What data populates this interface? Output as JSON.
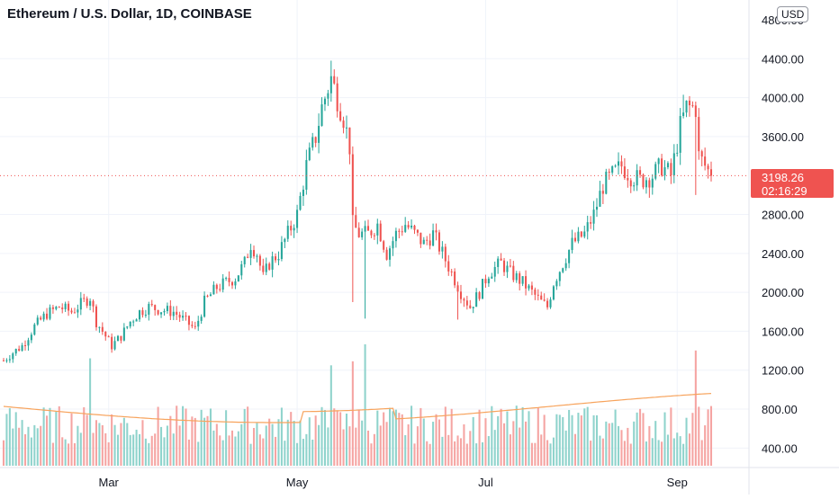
{
  "header": {
    "title": "Ethereum / U.S. Dollar, 1D, COINBASE",
    "currency_button": "USD"
  },
  "price_tag": {
    "value": "3198.26",
    "countdown": "02:16:29"
  },
  "colors": {
    "up": "#26a69a",
    "down": "#ef5350",
    "volume_up": "#8fd3cc",
    "volume_down": "#f5a4a2",
    "volume_ma": "#f7a35c",
    "grid": "#f0f3fa",
    "price_line": "#ef5350"
  },
  "chart_data": {
    "type": "candlestick",
    "y_axis": {
      "ticks": [
        "400.00",
        "800.00",
        "1200.00",
        "1600.00",
        "2000.00",
        "2400.00",
        "2800.00",
        "3600.00",
        "4000.00",
        "4400.00"
      ],
      "top_tick_partial": "4800.00",
      "range": [
        200,
        4800
      ]
    },
    "x_axis": {
      "ticks": [
        "Mar",
        "May",
        "Jul",
        "Sep"
      ]
    },
    "last_price": 3198.26,
    "series": [
      {
        "kind": "price_path",
        "points": [
          [
            "2021-01-26",
            1300
          ],
          [
            "2021-01-29",
            1380
          ],
          [
            "2021-02-01",
            1450
          ],
          [
            "2021-02-05",
            1650
          ],
          [
            "2021-02-09",
            1780
          ],
          [
            "2021-02-13",
            1850
          ],
          [
            "2021-02-17",
            1800
          ],
          [
            "2021-02-20",
            1880
          ],
          [
            "2021-02-23",
            1950
          ],
          [
            "2021-02-25",
            1700
          ],
          [
            "2021-02-28",
            1550
          ],
          [
            "2021-03-02",
            1450
          ],
          [
            "2021-03-05",
            1550
          ],
          [
            "2021-03-08",
            1700
          ],
          [
            "2021-03-11",
            1800
          ],
          [
            "2021-03-14",
            1850
          ],
          [
            "2021-03-18",
            1820
          ],
          [
            "2021-03-22",
            1800
          ],
          [
            "2021-03-26",
            1700
          ],
          [
            "2021-03-29",
            1620
          ],
          [
            "2021-04-01",
            1900
          ],
          [
            "2021-04-05",
            2050
          ],
          [
            "2021-04-08",
            2100
          ],
          [
            "2021-04-11",
            2150
          ],
          [
            "2021-04-14",
            2300
          ],
          [
            "2021-04-16",
            2500
          ],
          [
            "2021-04-18",
            2400
          ],
          [
            "2021-04-20",
            2150
          ],
          [
            "2021-04-22",
            2300
          ],
          [
            "2021-04-25",
            2400
          ],
          [
            "2021-04-28",
            2600
          ],
          [
            "2021-05-01",
            2800
          ],
          [
            "2021-05-04",
            3300
          ],
          [
            "2021-05-07",
            3600
          ],
          [
            "2021-05-09",
            3900
          ],
          [
            "2021-05-12",
            4200
          ],
          [
            "2021-05-14",
            4000
          ],
          [
            "2021-05-16",
            3800
          ],
          [
            "2021-05-18",
            3500
          ],
          [
            "2021-05-19",
            2700
          ],
          [
            "2021-05-21",
            2600
          ],
          [
            "2021-05-24",
            2600
          ],
          [
            "2021-05-27",
            2700
          ],
          [
            "2021-05-30",
            2400
          ],
          [
            "2021-06-02",
            2600
          ],
          [
            "2021-06-05",
            2700
          ],
          [
            "2021-06-08",
            2600
          ],
          [
            "2021-06-11",
            2500
          ],
          [
            "2021-06-14",
            2600
          ],
          [
            "2021-06-17",
            2400
          ],
          [
            "2021-06-20",
            2200
          ],
          [
            "2021-06-23",
            2000
          ],
          [
            "2021-06-26",
            1850
          ],
          [
            "2021-06-29",
            2000
          ],
          [
            "2021-07-02",
            2200
          ],
          [
            "2021-07-06",
            2300
          ],
          [
            "2021-07-09",
            2200
          ],
          [
            "2021-07-13",
            2100
          ],
          [
            "2021-07-16",
            2000
          ],
          [
            "2021-07-19",
            1900
          ],
          [
            "2021-07-21",
            1850
          ],
          [
            "2021-07-23",
            2100
          ],
          [
            "2021-07-26",
            2300
          ],
          [
            "2021-07-29",
            2500
          ],
          [
            "2021-08-02",
            2600
          ],
          [
            "2021-08-05",
            2800
          ],
          [
            "2021-08-08",
            3100
          ],
          [
            "2021-08-11",
            3200
          ],
          [
            "2021-08-14",
            3300
          ],
          [
            "2021-08-17",
            3200
          ],
          [
            "2021-08-20",
            3150
          ],
          [
            "2021-08-24",
            3200
          ],
          [
            "2021-08-27",
            3300
          ],
          [
            "2021-08-30",
            3200
          ],
          [
            "2021-09-02",
            3700
          ],
          [
            "2021-09-04",
            3900
          ],
          [
            "2021-09-07",
            3900
          ],
          [
            "2021-09-08",
            3400
          ],
          [
            "2021-09-10",
            3300
          ],
          [
            "2021-09-12",
            3198.26
          ]
        ]
      },
      {
        "kind": "volume",
        "level_range": [
          40,
          200
        ],
        "ma_level": 100
      }
    ]
  }
}
